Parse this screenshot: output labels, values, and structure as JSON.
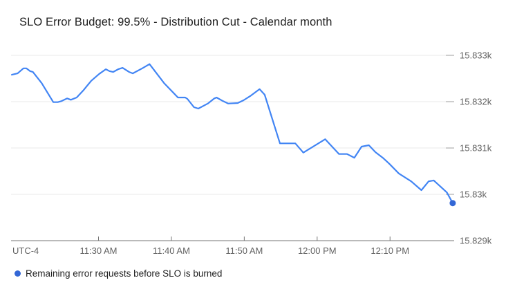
{
  "legend": {
    "label": "Remaining error requests before SLO is burned"
  },
  "colors": {
    "line": "#4285f4",
    "endpoint_dot": "#3367d6",
    "legend_marker": "#3367d6",
    "gridline": "#e8e8e8",
    "gridline_right_tick": "#9e9e9e",
    "axis_line": "#757575",
    "tick_label": "#616161",
    "title": "#212121",
    "background": "#ffffff"
  },
  "chart_data": {
    "type": "line",
    "title": "SLO Error Budget: 99.5% - Distribution Cut - Calendar month",
    "grid": "horizontal-only",
    "legend_position": "bottom-left",
    "x_axis": {
      "timezone_label": "UTC-4",
      "unit": "minutes relative to 11:30 AM",
      "range": [
        -12,
        48.8
      ],
      "ticks": [
        {
          "label": "11:30 AM",
          "t": 0
        },
        {
          "label": "11:40 AM",
          "t": 10
        },
        {
          "label": "11:50 AM",
          "t": 20
        },
        {
          "label": "12:00 PM",
          "t": 30
        },
        {
          "label": "12:10 PM",
          "t": 40
        }
      ]
    },
    "y_axis": {
      "unit": "requests",
      "range": [
        15829,
        15833
      ],
      "ticks": [
        {
          "label": "15.833k",
          "value": 15833
        },
        {
          "label": "15.832k",
          "value": 15832
        },
        {
          "label": "15.831k",
          "value": 15831
        },
        {
          "label": "15.83k",
          "value": 15830
        },
        {
          "label": "15.829k",
          "value": 15829
        }
      ]
    },
    "series": [
      {
        "name": "Remaining error requests before SLO is burned",
        "endpoint_dot": true,
        "points": [
          [
            -11.9,
            15832.58
          ],
          [
            -11.1,
            15832.61
          ],
          [
            -10.3,
            15832.72
          ],
          [
            -9.9,
            15832.72
          ],
          [
            -9.4,
            15832.66
          ],
          [
            -9.0,
            15832.64
          ],
          [
            -7.8,
            15832.4
          ],
          [
            -6.2,
            15831.99
          ],
          [
            -5.6,
            15831.99
          ],
          [
            -5.1,
            15832.01
          ],
          [
            -4.3,
            15832.07
          ],
          [
            -3.8,
            15832.04
          ],
          [
            -3.0,
            15832.09
          ],
          [
            -2.1,
            15832.24
          ],
          [
            -1.0,
            15832.45
          ],
          [
            0.1,
            15832.6
          ],
          [
            1.0,
            15832.7
          ],
          [
            1.5,
            15832.66
          ],
          [
            2.0,
            15832.64
          ],
          [
            2.7,
            15832.7
          ],
          [
            3.3,
            15832.73
          ],
          [
            4.2,
            15832.64
          ],
          [
            4.7,
            15832.61
          ],
          [
            6.0,
            15832.72
          ],
          [
            7.0,
            15832.81
          ],
          [
            9.0,
            15832.4
          ],
          [
            10.9,
            15832.09
          ],
          [
            11.9,
            15832.09
          ],
          [
            12.2,
            15832.06
          ],
          [
            13.1,
            15831.88
          ],
          [
            13.7,
            15831.85
          ],
          [
            15.0,
            15831.96
          ],
          [
            15.9,
            15832.07
          ],
          [
            16.2,
            15832.09
          ],
          [
            17.1,
            15832.01
          ],
          [
            17.8,
            15831.96
          ],
          [
            19.1,
            15831.97
          ],
          [
            19.9,
            15832.03
          ],
          [
            20.9,
            15832.13
          ],
          [
            22.1,
            15832.27
          ],
          [
            22.8,
            15832.15
          ],
          [
            24.9,
            15831.1
          ],
          [
            27.0,
            15831.1
          ],
          [
            28.1,
            15830.9
          ],
          [
            31.1,
            15831.19
          ],
          [
            33.0,
            15830.87
          ],
          [
            34.1,
            15830.87
          ],
          [
            35.1,
            15830.79
          ],
          [
            36.1,
            15831.03
          ],
          [
            37.1,
            15831.06
          ],
          [
            38.0,
            15830.91
          ],
          [
            39.0,
            15830.79
          ],
          [
            39.9,
            15830.66
          ],
          [
            41.2,
            15830.45
          ],
          [
            42.9,
            15830.28
          ],
          [
            44.3,
            15830.09
          ],
          [
            45.3,
            15830.28
          ],
          [
            46.0,
            15830.3
          ],
          [
            47.8,
            15830.04
          ],
          [
            48.6,
            15829.81
          ]
        ]
      }
    ]
  }
}
